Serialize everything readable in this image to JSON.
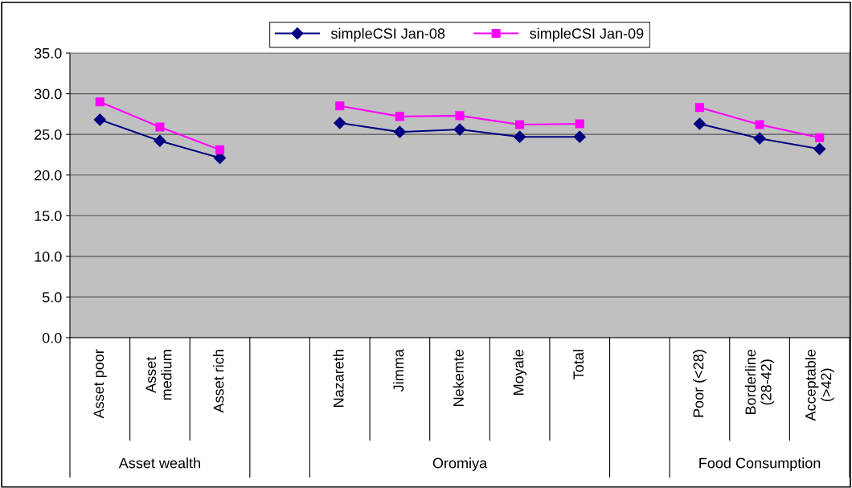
{
  "chart_data": {
    "type": "line",
    "categories": [
      "Asset poor",
      "Asset\nmedium",
      "Asset rich",
      null,
      "Nazareth",
      "Jimma",
      "Nekemte",
      "Moyale",
      "Total",
      null,
      "Poor (<28)",
      "Borderline\n(28-42)",
      "Acceptable\n(>42)"
    ],
    "series": [
      {
        "name": "simpleCSI Jan-08",
        "color": "#000080",
        "marker": "diamond",
        "values": [
          26.8,
          24.2,
          22.1,
          null,
          26.4,
          25.3,
          25.6,
          24.7,
          24.7,
          null,
          26.3,
          24.5,
          23.2
        ]
      },
      {
        "name": "simpleCSI Jan-09",
        "color": "#ff00ff",
        "marker": "square",
        "values": [
          29.0,
          25.9,
          23.1,
          null,
          28.5,
          27.2,
          27.3,
          26.2,
          26.3,
          null,
          28.3,
          26.2,
          24.6
        ]
      }
    ],
    "annotations": [
      "Asset wealth",
      "Oromiya",
      "Food Consumption"
    ],
    "ylim": [
      0,
      35
    ],
    "yticks": [
      {
        "value": 0,
        "label": "0.0"
      },
      {
        "value": 5,
        "label": "5.0"
      },
      {
        "value": 10,
        "label": "10.0"
      },
      {
        "value": 15,
        "label": "15.0"
      },
      {
        "value": 20,
        "label": "20.0"
      },
      {
        "value": 25,
        "label": "25.0"
      },
      {
        "value": 30,
        "label": "30.0"
      },
      {
        "value": 35,
        "label": "35.0"
      }
    ],
    "grid": "y",
    "legend": "top",
    "line_style": "solid"
  }
}
